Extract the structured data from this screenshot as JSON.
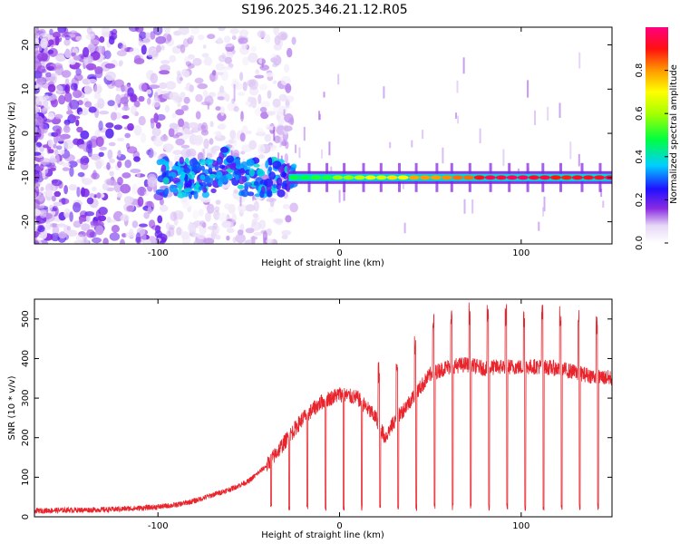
{
  "title": "S196.2025.346.21.12.R05",
  "chart_data": [
    {
      "type": "heatmap",
      "xlabel": "Height of straight line (km)",
      "ylabel": "Frequency (Hz)",
      "xlim": [
        -168,
        150
      ],
      "ylim": [
        -25,
        24
      ],
      "xticks": [
        -100,
        0,
        100
      ],
      "yticks": [
        20,
        10,
        0,
        -10,
        -20
      ],
      "colorbar": {
        "label": "Normalized spectral amplitude",
        "range": [
          0.0,
          1.0
        ],
        "ticks": [
          0.0,
          0.2,
          0.4,
          0.6,
          0.8
        ]
      },
      "features": [
        {
          "label": "carrier line",
          "frequency_hz": -10,
          "x_from_km": -28,
          "x_to_km": 150,
          "amplitude_peak": 0.95
        },
        {
          "label": "noise region",
          "x_from_km": -168,
          "x_to_km": -55,
          "amplitude": 0.3
        }
      ]
    },
    {
      "type": "line",
      "xlabel": "Height of straight line (km)",
      "ylabel": "SNR (10 * v/v)",
      "xlim": [
        -168,
        150
      ],
      "ylim": [
        0,
        550
      ],
      "xticks": [
        -100,
        0,
        100
      ],
      "yticks": [
        0,
        100,
        200,
        300,
        400,
        500
      ],
      "series": [
        {
          "name": "SNR",
          "color": "#e8242c",
          "x": [
            -168,
            -150,
            -130,
            -110,
            -100,
            -90,
            -80,
            -70,
            -60,
            -50,
            -40,
            -30,
            -20,
            -10,
            0,
            10,
            20,
            25,
            30,
            40,
            50,
            60,
            70,
            80,
            90,
            100,
            110,
            120,
            130,
            140,
            150
          ],
          "values": [
            15,
            17,
            18,
            22,
            25,
            30,
            40,
            55,
            70,
            90,
            130,
            190,
            250,
            290,
            310,
            300,
            250,
            200,
            240,
            300,
            360,
            380,
            385,
            375,
            380,
            378,
            380,
            375,
            365,
            355,
            350
          ]
        }
      ]
    }
  ]
}
